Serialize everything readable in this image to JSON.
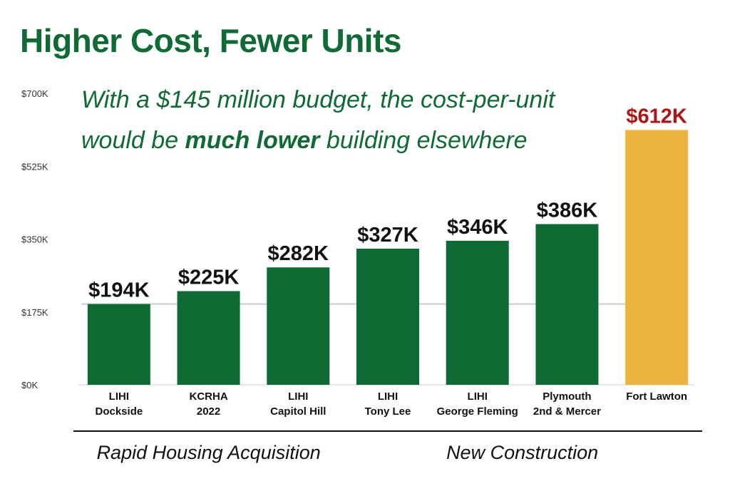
{
  "chart_data": {
    "type": "bar",
    "title": "Higher Cost, Fewer Units",
    "subtitle_parts": [
      "With a $145 million budget, the cost-per-unit would be ",
      "much lower",
      " building elsewhere"
    ],
    "categories": [
      [
        "LIHI",
        "Dockside"
      ],
      [
        "KCRHA",
        "2022"
      ],
      [
        "LIHI",
        "Capitol Hill"
      ],
      [
        "LIHI",
        "Tony Lee"
      ],
      [
        "LIHI",
        "George Fleming"
      ],
      [
        "Plymouth",
        "2nd & Mercer"
      ],
      [
        "Fort Lawton"
      ]
    ],
    "values": [
      194,
      225,
      282,
      327,
      346,
      386,
      612
    ],
    "data_labels": [
      "$194K",
      "$225K",
      "$282K",
      "$327K",
      "$346K",
      "$386K",
      "$612K"
    ],
    "yticks": [
      0,
      175,
      350,
      525,
      700
    ],
    "ytick_labels": [
      "$0K",
      "$175K",
      "$350K",
      "$525K",
      "$700K"
    ],
    "ylim": [
      0,
      700
    ],
    "reference_line": 194,
    "groups": [
      {
        "label": "Rapid Housing Acquisition",
        "first": 0,
        "last": 2
      },
      {
        "label": "New Construction",
        "first": 3,
        "last": 6
      }
    ],
    "colors": {
      "bar": "#0f6b34",
      "highlight_bar": "#ebb33b",
      "label": "#111111",
      "highlight_label": "#b01515",
      "reference_line": "#cccccc"
    },
    "highlight_index": 6
  }
}
